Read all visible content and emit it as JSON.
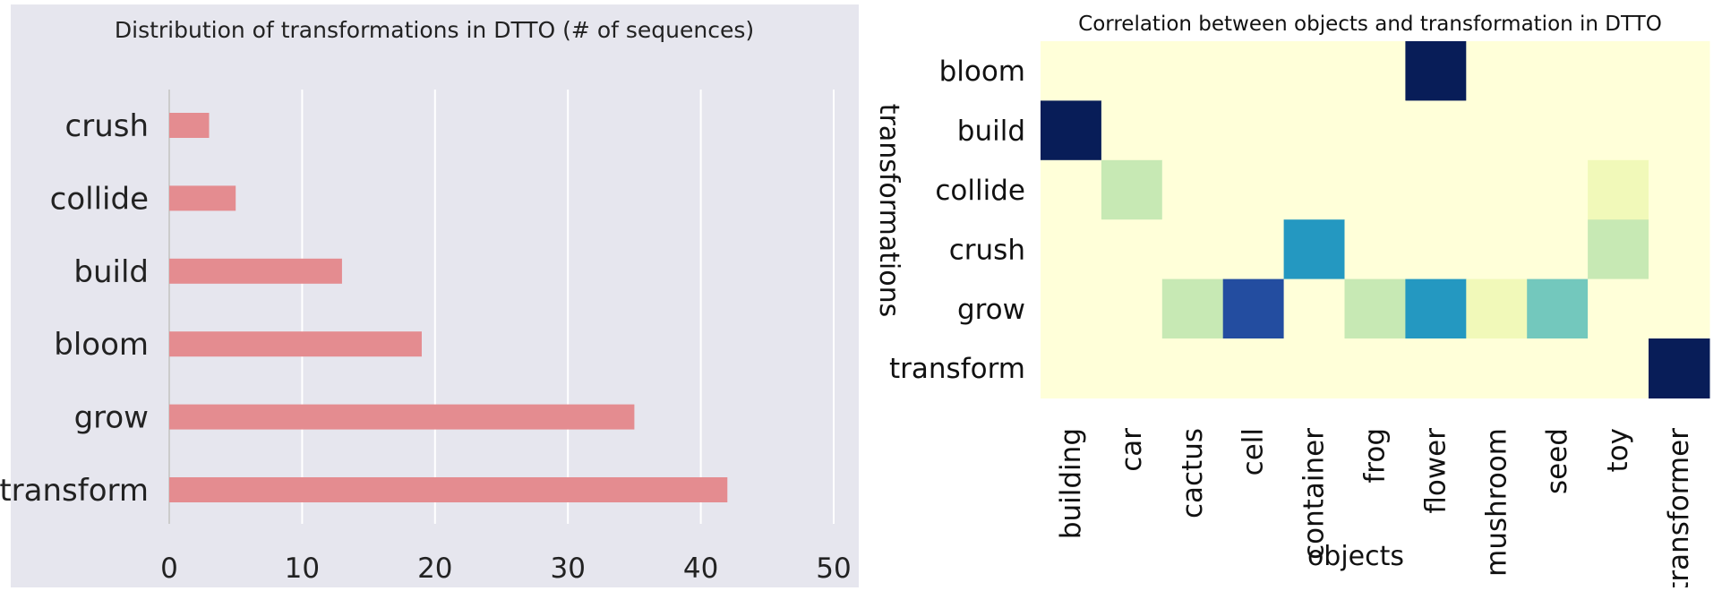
{
  "chart_data": [
    {
      "type": "bar",
      "orientation": "horizontal",
      "title": "Distribution of transformations in DTTO (# of sequences)",
      "xlabel": "",
      "ylabel": "",
      "categories": [
        "crush",
        "collide",
        "build",
        "bloom",
        "grow",
        "transform"
      ],
      "values": [
        3,
        5,
        13,
        19,
        35,
        42
      ],
      "xlim": [
        0,
        50
      ],
      "xticks": [
        "0",
        "10",
        "20",
        "30",
        "40",
        "50"
      ],
      "grid": true,
      "colors": {
        "bar": "#e48c90",
        "background": "#e6e6ee",
        "grid": "#ffffff",
        "axis": "#cccccc"
      }
    },
    {
      "type": "heatmap",
      "title": "Correlation between objects and transformation in DTTO",
      "xlabel": "objects",
      "ylabel": "transformations",
      "x_categories": [
        "building",
        "car",
        "cactus",
        "cell",
        "container",
        "frog",
        "flower",
        "mushroom",
        "seed",
        "toy",
        "transformer"
      ],
      "y_categories": [
        "bloom",
        "build",
        "collide",
        "crush",
        "grow",
        "transform"
      ],
      "values": [
        [
          0,
          0,
          0,
          0,
          0,
          0,
          1.0,
          0,
          0,
          0,
          0
        ],
        [
          1.0,
          0,
          0,
          0,
          0,
          0,
          0,
          0,
          0,
          0,
          0
        ],
        [
          0,
          0.25,
          0,
          0,
          0,
          0,
          0,
          0,
          0,
          0.1,
          0
        ],
        [
          0,
          0,
          0,
          0,
          0.6,
          0,
          0,
          0,
          0,
          0.25,
          0
        ],
        [
          0,
          0,
          0.25,
          0.8,
          0,
          0.25,
          0.6,
          0.1,
          0.4,
          0,
          0
        ],
        [
          0,
          0,
          0,
          0,
          0,
          0,
          0,
          0,
          0,
          0,
          1.0
        ]
      ],
      "colormap": "YlGnBu",
      "colorscale": [
        "#ffffd9",
        "#edf8b1",
        "#c7e9b4",
        "#7fcdbb",
        "#41b6c4",
        "#1d91c0",
        "#225ea8",
        "#253494",
        "#081d58"
      ]
    }
  ]
}
